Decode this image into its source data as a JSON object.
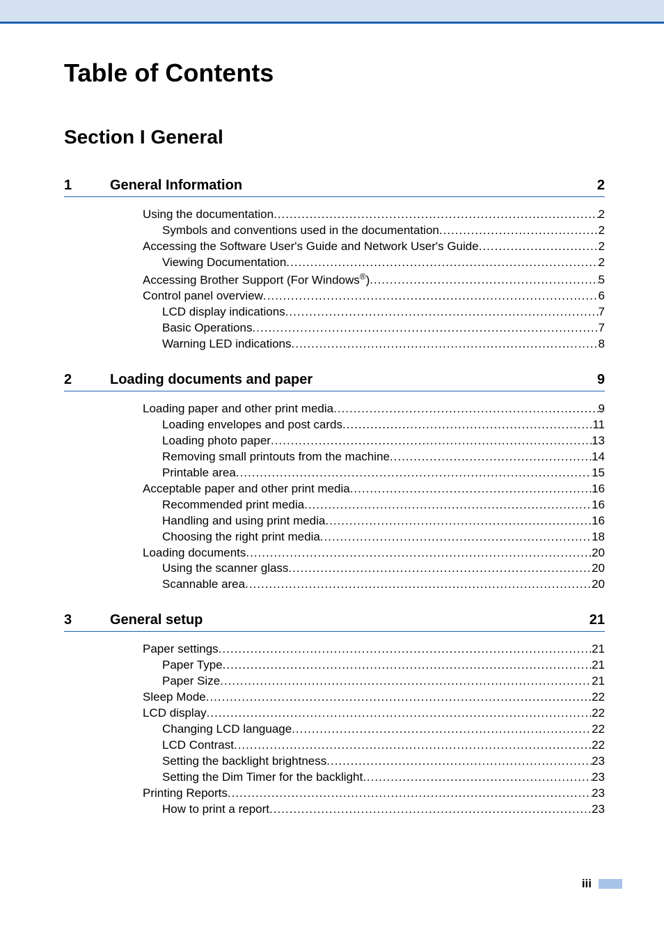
{
  "colors": {
    "header_bg": "#d4e1f3",
    "rule": "#1f5fb0",
    "tab": "#a7c3e8",
    "text": "#000000",
    "page_bg": "#ffffff"
  },
  "typography": {
    "main_title_pt": 36,
    "section_title_pt": 28,
    "chapter_header_pt": 20,
    "entry_pt": 17
  },
  "main_title": "Table of Contents",
  "section_title": "Section I   General",
  "chapters": [
    {
      "num": "1",
      "title": "General Information",
      "page": "2",
      "entries": [
        {
          "level": 0,
          "label": "Using the documentation",
          "page": "2"
        },
        {
          "level": 1,
          "label": "Symbols and conventions used in the documentation ",
          "page": "2"
        },
        {
          "level": 0,
          "label": "Accessing the Software User's Guide and Network User's Guide ",
          "page": "2"
        },
        {
          "level": 1,
          "label": "Viewing Documentation",
          "page": "2"
        },
        {
          "level": 0,
          "label_html": "Accessing Brother Support (For Windows<sup>®</sup>) ",
          "page": "5"
        },
        {
          "level": 0,
          "label": "Control panel overview ",
          "page": "6"
        },
        {
          "level": 1,
          "label": "LCD display indications ",
          "page": "7"
        },
        {
          "level": 1,
          "label": "Basic Operations ",
          "page": "7"
        },
        {
          "level": 1,
          "label": "Warning LED indications ",
          "page": "8"
        }
      ]
    },
    {
      "num": "2",
      "title": "Loading documents and paper",
      "page": "9",
      "entries": [
        {
          "level": 0,
          "label": "Loading paper and other print media",
          "page": "9"
        },
        {
          "level": 1,
          "label": "Loading envelopes and post cards",
          "page": "11"
        },
        {
          "level": 1,
          "label": "Loading photo paper",
          "page": "13"
        },
        {
          "level": 1,
          "label": "Removing small printouts from the machine ",
          "page": "14"
        },
        {
          "level": 1,
          "label": "Printable area ",
          "page": "15"
        },
        {
          "level": 0,
          "label": "Acceptable paper and other print media",
          "page": "16"
        },
        {
          "level": 1,
          "label": "Recommended print media ",
          "page": "16"
        },
        {
          "level": 1,
          "label": "Handling and using print media ",
          "page": "16"
        },
        {
          "level": 1,
          "label": "Choosing the right print media",
          "page": "18"
        },
        {
          "level": 0,
          "label": "Loading documents ",
          "page": "20"
        },
        {
          "level": 1,
          "label": "Using the scanner glass ",
          "page": "20"
        },
        {
          "level": 1,
          "label": "Scannable area ",
          "page": "20"
        }
      ]
    },
    {
      "num": "3",
      "title": "General setup",
      "page": "21",
      "entries": [
        {
          "level": 0,
          "label": "Paper settings",
          "page": "21"
        },
        {
          "level": 1,
          "label": "Paper Type ",
          "page": "21"
        },
        {
          "level": 1,
          "label": "Paper Size ",
          "page": "21"
        },
        {
          "level": 0,
          "label": "Sleep Mode ",
          "page": "22"
        },
        {
          "level": 0,
          "label": "LCD display ",
          "page": "22"
        },
        {
          "level": 1,
          "label": "Changing LCD language ",
          "page": "22"
        },
        {
          "level": 1,
          "label": "LCD Contrast",
          "page": "22"
        },
        {
          "level": 1,
          "label": "Setting the backlight brightness",
          "page": "23"
        },
        {
          "level": 1,
          "label": "Setting the Dim Timer for the backlight  ",
          "page": "23"
        },
        {
          "level": 0,
          "label": "Printing Reports",
          "page": "23"
        },
        {
          "level": 1,
          "label": "How to print a report ",
          "page": "23"
        }
      ]
    }
  ],
  "page_number": "iii"
}
